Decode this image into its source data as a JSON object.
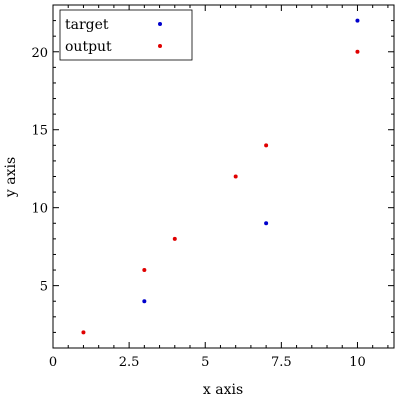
{
  "chart_data": {
    "type": "scatter",
    "xlabel": "x axis",
    "ylabel": "y axis",
    "xlim": [
      0,
      11.2
    ],
    "ylim": [
      1.0,
      23.0
    ],
    "x_ticks": [
      0,
      2.5,
      5,
      7.5,
      10
    ],
    "x_tick_labels": [
      "0",
      "2.5",
      "5",
      "7.5",
      "10"
    ],
    "y_ticks": [
      5,
      10,
      15,
      20
    ],
    "y_tick_labels": [
      "5",
      "10",
      "15",
      "20"
    ],
    "grid": false,
    "legend_position": "top-left",
    "series": [
      {
        "name": "target",
        "color": "#0000cc",
        "points": [
          [
            3,
            4
          ],
          [
            7,
            9
          ],
          [
            10,
            22
          ]
        ]
      },
      {
        "name": "output",
        "color": "#e00000",
        "points": [
          [
            1,
            2
          ],
          [
            3,
            6
          ],
          [
            4,
            8
          ],
          [
            6,
            12
          ],
          [
            7,
            14
          ],
          [
            10,
            20
          ]
        ]
      }
    ]
  }
}
